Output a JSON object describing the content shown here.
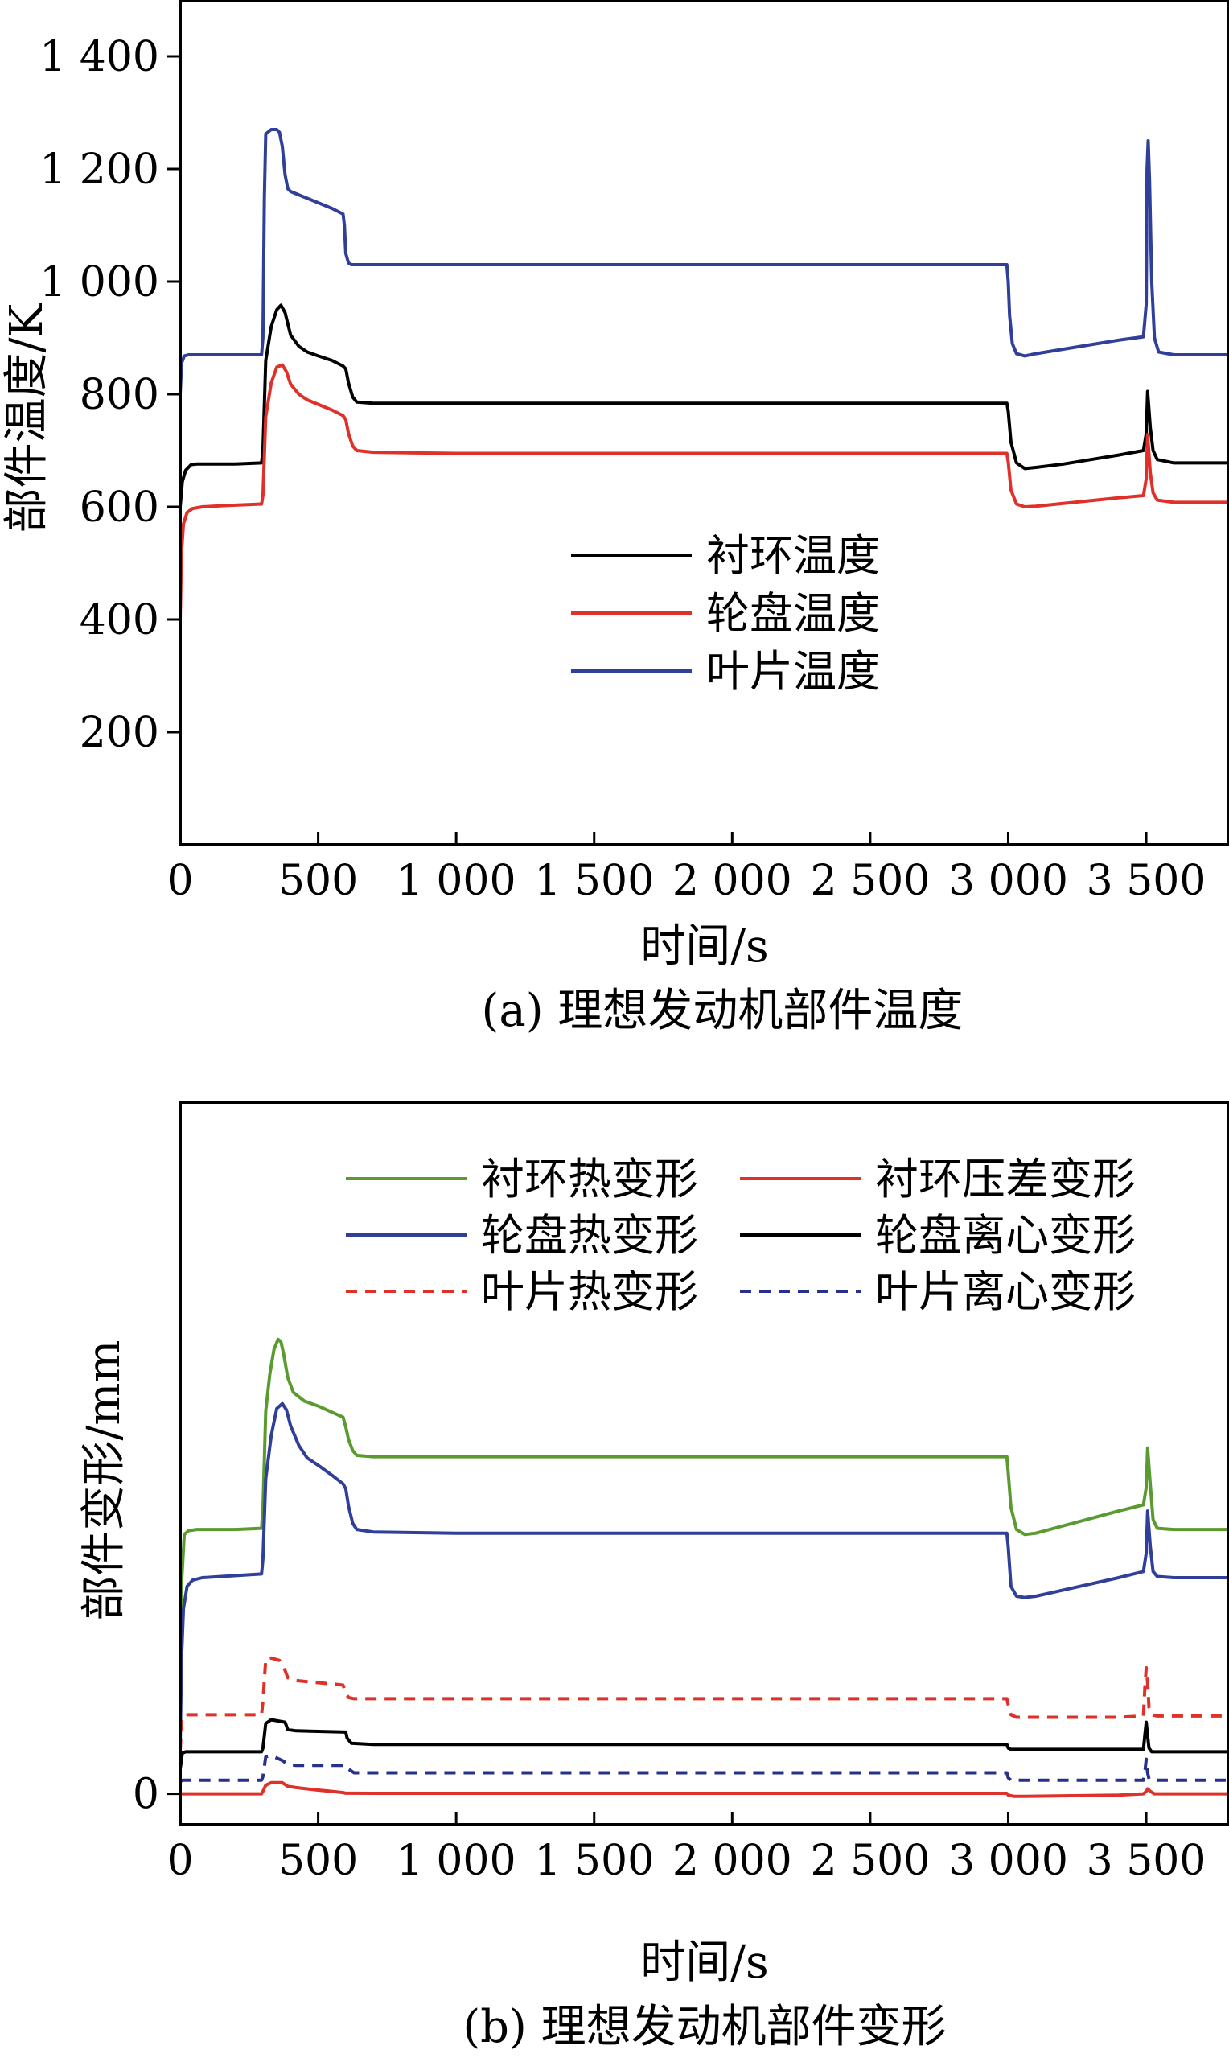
{
  "colors": {
    "black": "#000000",
    "red": "#e0302a",
    "blue": "#2f3f9a",
    "green": "#5a9a2e",
    "dashed_blue": "#27308a"
  },
  "chart_data": [
    {
      "type": "line",
      "caption": "(a) 理想发动机部件温度",
      "xlabel": "时间/s",
      "ylabel": "部件温度/K",
      "xlim": [
        0,
        3800
      ],
      "ylim": [
        0,
        1500
      ],
      "xticks": [
        0,
        500,
        1000,
        1500,
        2000,
        2500,
        3000,
        3500
      ],
      "xtick_labels": [
        "0",
        "500",
        "1 000",
        "1 500",
        "2 000",
        "2 500",
        "3 000",
        "3 500"
      ],
      "yticks": [
        200,
        400,
        600,
        800,
        1000,
        1200,
        1400
      ],
      "ytick_labels": [
        "200",
        "400",
        "600",
        "800",
        "1 000",
        "1 200",
        "1 400"
      ],
      "legend_position": "center",
      "series": [
        {
          "name": "衬环温度",
          "color": "#000000",
          "dash": "solid",
          "x": [
            0,
            8,
            20,
            40,
            60,
            100,
            200,
            295,
            300,
            310,
            330,
            350,
            365,
            380,
            400,
            430,
            460,
            500,
            550,
            590,
            600,
            610,
            625,
            640,
            700,
            1000,
            2000,
            2995,
            3000,
            3010,
            3030,
            3060,
            3100,
            3200,
            3300,
            3400,
            3490,
            3500,
            3505,
            3515,
            3525,
            3540,
            3600,
            3800
          ],
          "y": [
            600,
            645,
            665,
            675,
            676,
            676,
            676,
            678,
            700,
            860,
            920,
            950,
            958,
            945,
            905,
            885,
            875,
            868,
            860,
            850,
            845,
            820,
            795,
            786,
            784,
            784,
            784,
            784,
            770,
            715,
            678,
            668,
            670,
            676,
            684,
            692,
            700,
            730,
            805,
            740,
            700,
            684,
            678,
            678
          ]
        },
        {
          "name": "轮盘温度",
          "color": "#e0302a",
          "dash": "solid",
          "x": [
            0,
            5,
            12,
            25,
            45,
            80,
            150,
            295,
            300,
            310,
            330,
            350,
            370,
            385,
            400,
            430,
            460,
            500,
            550,
            590,
            600,
            610,
            625,
            640,
            700,
            1000,
            2000,
            2995,
            3000,
            3010,
            3030,
            3060,
            3100,
            3200,
            3300,
            3400,
            3490,
            3500,
            3505,
            3515,
            3525,
            3540,
            3600,
            3800
          ],
          "y": [
            400,
            520,
            570,
            590,
            597,
            600,
            602,
            605,
            620,
            760,
            820,
            848,
            852,
            840,
            818,
            800,
            790,
            782,
            772,
            762,
            755,
            730,
            708,
            700,
            697,
            695,
            695,
            695,
            680,
            630,
            605,
            600,
            601,
            606,
            611,
            616,
            620,
            650,
            728,
            660,
            625,
            612,
            608,
            608
          ]
        },
        {
          "name": "叶片温度",
          "color": "#2f3f9a",
          "dash": "solid",
          "x": [
            0,
            5,
            15,
            30,
            60,
            120,
            295,
            300,
            305,
            310,
            330,
            350,
            360,
            370,
            380,
            390,
            400,
            450,
            500,
            550,
            590,
            595,
            600,
            610,
            620,
            700,
            1000,
            2000,
            2995,
            3000,
            3005,
            3015,
            3030,
            3060,
            3100,
            3200,
            3300,
            3400,
            3490,
            3500,
            3503,
            3507,
            3512,
            3520,
            3530,
            3545,
            3600,
            3800
          ],
          "y": [
            800,
            855,
            868,
            870,
            870,
            870,
            870,
            900,
            1150,
            1262,
            1270,
            1270,
            1265,
            1240,
            1190,
            1165,
            1160,
            1150,
            1140,
            1130,
            1120,
            1100,
            1050,
            1033,
            1030,
            1030,
            1030,
            1030,
            1030,
            1000,
            940,
            890,
            872,
            868,
            872,
            880,
            888,
            896,
            902,
            960,
            1200,
            1250,
            1180,
            1000,
            900,
            875,
            870,
            870
          ]
        }
      ]
    },
    {
      "type": "line",
      "caption": "(b) 理想发动机部件变形",
      "xlabel": "时间/s",
      "ylabel": "部件变形/mm",
      "xlim": [
        0,
        3800
      ],
      "ylim": [
        -0.025,
        0.56
      ],
      "xticks": [
        0,
        500,
        1000,
        1500,
        2000,
        2500,
        3000,
        3500
      ],
      "xtick_labels": [
        "0",
        "500",
        "1 000",
        "1 500",
        "2 000",
        "2 500",
        "3 000",
        "3 500"
      ],
      "yticks": [
        0
      ],
      "ytick_labels": [
        "0"
      ],
      "legend_position": "top",
      "series": [
        {
          "name": "衬环热变形",
          "color": "#5a9a2e",
          "dash": "solid",
          "x": [
            0,
            5,
            15,
            30,
            60,
            100,
            200,
            295,
            300,
            310,
            325,
            340,
            355,
            365,
            375,
            390,
            410,
            450,
            500,
            550,
            590,
            600,
            610,
            625,
            640,
            700,
            1000,
            2000,
            2995,
            3000,
            3010,
            3030,
            3060,
            3100,
            3200,
            3300,
            3400,
            3490,
            3500,
            3505,
            3515,
            3525,
            3540,
            3600,
            3800
          ],
          "y": [
            0.08,
            0.17,
            0.21,
            0.213,
            0.214,
            0.214,
            0.214,
            0.215,
            0.23,
            0.31,
            0.34,
            0.36,
            0.368,
            0.366,
            0.356,
            0.337,
            0.325,
            0.318,
            0.314,
            0.309,
            0.305,
            0.297,
            0.287,
            0.278,
            0.274,
            0.273,
            0.273,
            0.273,
            0.273,
            0.26,
            0.232,
            0.214,
            0.21,
            0.211,
            0.217,
            0.223,
            0.229,
            0.234,
            0.248,
            0.28,
            0.25,
            0.222,
            0.215,
            0.214,
            0.214
          ]
        },
        {
          "name": "衬环压差变形",
          "color": "#e0302a",
          "dash": "solid",
          "x": [
            0,
            295,
            300,
            310,
            330,
            350,
            370,
            390,
            420,
            460,
            500,
            550,
            590,
            600,
            620,
            700,
            1000,
            2000,
            2995,
            3000,
            3020,
            3060,
            3400,
            3490,
            3500,
            3505,
            3515,
            3530,
            3600,
            3800
          ],
          "y": [
            0,
            0,
            0.002,
            0.007,
            0.009,
            0.009,
            0.009,
            0.006,
            0.005,
            0.004,
            0.003,
            0.002,
            0.001,
            0.0005,
            0.0005,
            0.0004,
            0.0004,
            0.0004,
            0.0004,
            -0.001,
            -0.002,
            -0.002,
            -0.001,
            0,
            0.002,
            0.004,
            0.002,
            0,
            0,
            0
          ]
        },
        {
          "name": "轮盘热变形",
          "color": "#2f3f9a",
          "dash": "solid",
          "x": [
            0,
            5,
            12,
            25,
            45,
            80,
            150,
            295,
            300,
            310,
            330,
            350,
            370,
            385,
            400,
            430,
            460,
            500,
            550,
            590,
            600,
            610,
            625,
            640,
            700,
            1000,
            2000,
            2995,
            3000,
            3010,
            3030,
            3060,
            3100,
            3200,
            3300,
            3400,
            3490,
            3500,
            3505,
            3515,
            3525,
            3540,
            3600,
            3800
          ],
          "y": [
            0.04,
            0.11,
            0.15,
            0.168,
            0.173,
            0.175,
            0.176,
            0.178,
            0.19,
            0.255,
            0.29,
            0.312,
            0.316,
            0.311,
            0.298,
            0.282,
            0.272,
            0.266,
            0.258,
            0.251,
            0.247,
            0.233,
            0.219,
            0.214,
            0.212,
            0.211,
            0.211,
            0.211,
            0.2,
            0.168,
            0.16,
            0.159,
            0.16,
            0.165,
            0.17,
            0.175,
            0.18,
            0.195,
            0.229,
            0.2,
            0.18,
            0.176,
            0.175,
            0.175
          ]
        },
        {
          "name": "轮盘离心变形",
          "color": "#000000",
          "dash": "solid",
          "x": [
            0,
            8,
            20,
            50,
            100,
            295,
            300,
            310,
            330,
            380,
            390,
            420,
            600,
            605,
            620,
            700,
            1000,
            2000,
            2995,
            3000,
            3010,
            3060,
            3490,
            3495,
            3500,
            3505,
            3510,
            3520,
            3600,
            3800
          ],
          "y": [
            0.02,
            0.033,
            0.034,
            0.034,
            0.034,
            0.034,
            0.037,
            0.057,
            0.06,
            0.058,
            0.052,
            0.051,
            0.05,
            0.045,
            0.041,
            0.04,
            0.04,
            0.04,
            0.04,
            0.037,
            0.036,
            0.036,
            0.036,
            0.047,
            0.058,
            0.047,
            0.037,
            0.034,
            0.034,
            0.034
          ]
        },
        {
          "name": "叶片热变形",
          "color": "#e0302a",
          "dash": "dashed",
          "x": [
            0,
            5,
            15,
            40,
            80,
            295,
            300,
            310,
            330,
            360,
            380,
            390,
            410,
            450,
            500,
            550,
            590,
            600,
            610,
            630,
            700,
            1000,
            2000,
            2995,
            3000,
            3010,
            3030,
            3060,
            3400,
            3490,
            3495,
            3500,
            3505,
            3510,
            3520,
            3540,
            3600,
            3800
          ],
          "y": [
            0.035,
            0.06,
            0.064,
            0.064,
            0.064,
            0.064,
            0.075,
            0.109,
            0.11,
            0.108,
            0.1,
            0.094,
            0.092,
            0.091,
            0.09,
            0.089,
            0.088,
            0.082,
            0.078,
            0.077,
            0.077,
            0.077,
            0.077,
            0.077,
            0.072,
            0.064,
            0.062,
            0.062,
            0.062,
            0.063,
            0.085,
            0.102,
            0.09,
            0.07,
            0.064,
            0.063,
            0.063,
            0.063
          ]
        },
        {
          "name": "叶片离心变形",
          "color": "#27308a",
          "dash": "dashed",
          "x": [
            0,
            10,
            30,
            100,
            295,
            300,
            310,
            330,
            350,
            370,
            390,
            420,
            600,
            610,
            630,
            700,
            1000,
            2000,
            2995,
            3000,
            3010,
            3060,
            3490,
            3495,
            3500,
            3505,
            3510,
            3520,
            3600,
            3800
          ],
          "y": [
            0.01,
            0.011,
            0.011,
            0.011,
            0.011,
            0.014,
            0.03,
            0.031,
            0.029,
            0.027,
            0.024,
            0.023,
            0.023,
            0.02,
            0.017,
            0.017,
            0.017,
            0.017,
            0.017,
            0.013,
            0.011,
            0.011,
            0.011,
            0.017,
            0.028,
            0.017,
            0.012,
            0.011,
            0.011,
            0.011
          ]
        }
      ]
    }
  ]
}
